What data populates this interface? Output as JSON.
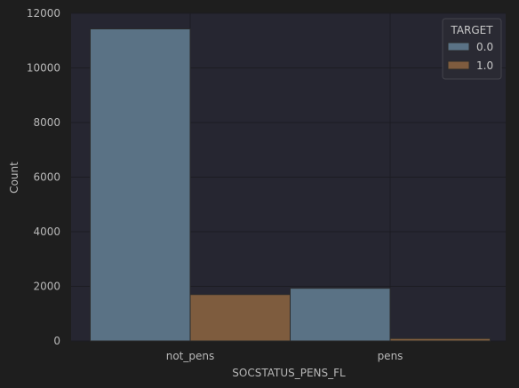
{
  "chart_data": {
    "type": "bar",
    "categories": [
      "not_pens",
      "pens"
    ],
    "series": [
      {
        "name": "0.0",
        "values": [
          11430,
          1930
        ],
        "color": "#5a7285"
      },
      {
        "name": "1.0",
        "values": [
          1700,
          90
        ],
        "color": "#7e5c3e"
      }
    ],
    "xlabel": "SOCSTATUS_PENS_FL",
    "ylabel": "Count",
    "ylim": [
      0,
      12000
    ],
    "yticks": [
      "0",
      "2000",
      "4000",
      "6000",
      "8000",
      "10000",
      "12000"
    ],
    "legend": {
      "title": "TARGET",
      "placement": "top-right"
    },
    "grid": true
  },
  "colors": {
    "background": "#1e1e1e",
    "plot_area": "#262631",
    "grid": "#1c1c22",
    "text": "#b8b8b8"
  }
}
